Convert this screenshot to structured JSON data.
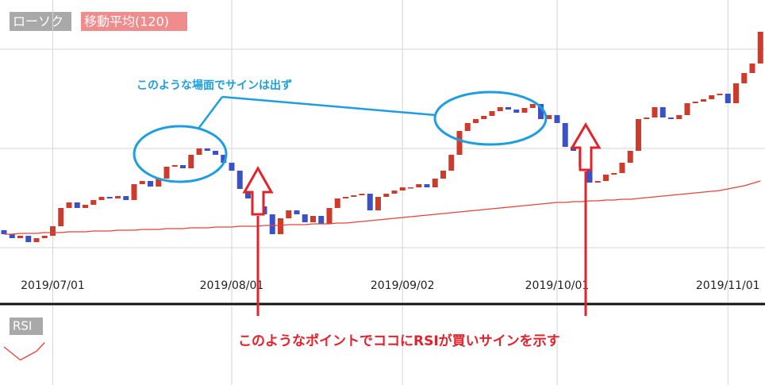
{
  "chart_data": {
    "type": "candlestick",
    "legend": [
      "ローソク",
      "移動平均(120)"
    ],
    "categories": [
      null,
      null,
      null,
      null,
      null,
      null,
      "2019/07/01",
      null,
      null,
      null,
      null,
      null,
      null,
      null,
      null,
      null,
      null,
      null,
      null,
      null,
      null,
      null,
      null,
      null,
      null,
      null,
      null,
      null,
      "2019/08/01",
      null,
      null,
      null,
      null,
      null,
      null,
      null,
      null,
      null,
      null,
      null,
      null,
      null,
      null,
      null,
      null,
      null,
      null,
      null,
      null,
      "2019/09/02",
      null,
      null,
      null,
      null,
      null,
      null,
      null,
      null,
      null,
      null,
      null,
      null,
      null,
      null,
      null,
      null,
      null,
      null,
      "2019/10/01",
      null,
      null,
      null,
      null,
      null,
      null,
      null,
      null,
      null,
      null,
      null,
      null,
      null,
      null,
      null,
      null,
      null,
      null,
      null,
      null,
      "2019/11/01",
      null,
      null,
      null,
      null
    ],
    "open": [
      50,
      45,
      40,
      43,
      35,
      40,
      43,
      55,
      78,
      85,
      78,
      82,
      88,
      92,
      90,
      93,
      88,
      108,
      112,
      105,
      115,
      130,
      132,
      128,
      145,
      153,
      150,
      145,
      135,
      125,
      102,
      90,
      80,
      70,
      45,
      65,
      75,
      70,
      60,
      68,
      58,
      78,
      90,
      92,
      94,
      96,
      75,
      92,
      96,
      100,
      104,
      104,
      108,
      104,
      115,
      125,
      145,
      175,
      185,
      190,
      194,
      200,
      205,
      202,
      198,
      204,
      209,
      190,
      195,
      185,
      155,
      150,
      130,
      110,
      112,
      120,
      122,
      135,
      150,
      190,
      192,
      205,
      192,
      190,
      195,
      210,
      212,
      215,
      220,
      222,
      210,
      235,
      248,
      260
    ],
    "close": [
      45,
      40,
      43,
      35,
      40,
      43,
      55,
      78,
      85,
      78,
      82,
      88,
      92,
      90,
      93,
      88,
      108,
      112,
      105,
      115,
      130,
      132,
      128,
      145,
      153,
      150,
      145,
      135,
      125,
      102,
      90,
      80,
      70,
      45,
      65,
      75,
      70,
      60,
      68,
      58,
      78,
      90,
      92,
      94,
      96,
      75,
      92,
      96,
      100,
      104,
      104,
      108,
      104,
      115,
      125,
      145,
      175,
      185,
      190,
      194,
      200,
      205,
      202,
      198,
      204,
      209,
      190,
      195,
      185,
      155,
      150,
      130,
      110,
      112,
      120,
      122,
      135,
      150,
      190,
      192,
      205,
      192,
      190,
      195,
      210,
      212,
      215,
      220,
      222,
      210,
      235,
      248,
      260,
      300
    ],
    "up_color": "#cc3b2b",
    "down_color": "#3a52c6",
    "series": [
      {
        "name": "移動平均(120)",
        "color": "#e8413a",
        "values": [
          45,
          45,
          46,
          46,
          46,
          47,
          47,
          47,
          48,
          48,
          48,
          49,
          49,
          49,
          50,
          50,
          50,
          51,
          51,
          51,
          52,
          52,
          52,
          53,
          53,
          53,
          54,
          54,
          54,
          55,
          55,
          55,
          56,
          56,
          56,
          57,
          57,
          57,
          58,
          58,
          58,
          59,
          59,
          60,
          61,
          62,
          63,
          64,
          65,
          66,
          67,
          68,
          69,
          70,
          71,
          72,
          73,
          74,
          75,
          76,
          77,
          78,
          79,
          80,
          81,
          82,
          83,
          84,
          85,
          85,
          86,
          86,
          87,
          87,
          88,
          88,
          89,
          89,
          90,
          91,
          92,
          93,
          94,
          95,
          96,
          97,
          98,
          99,
          100,
          102,
          104,
          106,
          109,
          112
        ]
      }
    ],
    "ylim": [
      0,
      340
    ],
    "yticks": [
      28,
      153,
      278
    ],
    "grid": true,
    "rsi": {
      "label": "RSI",
      "values": [
        60,
        45,
        30,
        40,
        50,
        70
      ],
      "ylim": [
        0,
        100
      ],
      "color": "#e8413a"
    },
    "annotations": [
      "このような場面でサインは出ず",
      "このようなポイントでココにRSIが買いサインを示す"
    ]
  }
}
